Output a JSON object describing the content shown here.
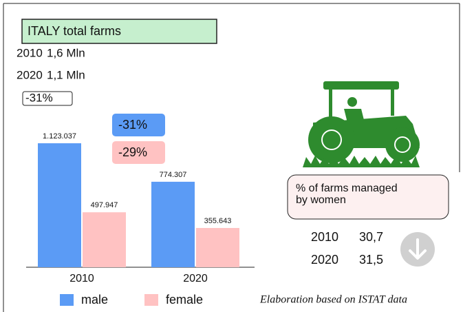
{
  "header": {
    "title": "ITALY total farms"
  },
  "totals": [
    {
      "year": "2010",
      "value": "1,6 Mln"
    },
    {
      "year": "2020",
      "value": "1,1 Mln"
    }
  ],
  "total_change": "-31%",
  "chart_data": {
    "type": "bar",
    "categories": [
      "2010",
      "2020"
    ],
    "series": [
      {
        "name": "male",
        "color": "#5b9bf5",
        "values": [
          1123037,
          774307
        ],
        "value_labels": [
          "1.123.037",
          "774.307"
        ]
      },
      {
        "name": "female",
        "color": "#ffc2c2",
        "values": [
          497947,
          355643
        ],
        "value_labels": [
          "497.947",
          "355.643"
        ]
      }
    ],
    "annotations": [
      {
        "text": "-31%",
        "color": "#5b9bf5"
      },
      {
        "text": "-29%",
        "color": "#ffc2c2"
      }
    ]
  },
  "women": {
    "title_line1": "% of farms managed",
    "title_line2": "by women",
    "rows": [
      {
        "year": "2010",
        "value": "30,7"
      },
      {
        "year": "2020",
        "value": "31,5"
      }
    ]
  },
  "footnote": "Elaboration based on ISTAT data"
}
